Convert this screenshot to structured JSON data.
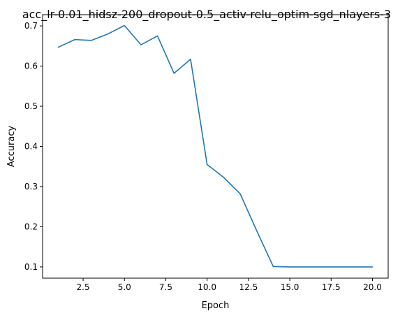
{
  "chart_data": {
    "type": "line",
    "title": "acc_lr-0.01_hidsz-200_dropout-0.5_activ-relu_optim-sgd_nlayers-3",
    "xlabel": "Epoch",
    "ylabel": "Accuracy",
    "xlim": [
      0.05,
      20.95
    ],
    "ylim": [
      0.072,
      0.728
    ],
    "grid": false,
    "x_ticks": [
      2.5,
      5.0,
      7.5,
      10.0,
      12.5,
      15.0,
      17.5,
      20.0
    ],
    "x_tick_labels": [
      "2.5",
      "5.0",
      "7.5",
      "10.0",
      "12.5",
      "15.0",
      "17.5",
      "20.0"
    ],
    "y_ticks": [
      0.1,
      0.2,
      0.3,
      0.4,
      0.5,
      0.6,
      0.7
    ],
    "y_tick_labels": [
      "0.1",
      "0.2",
      "0.3",
      "0.4",
      "0.5",
      "0.6",
      "0.7"
    ],
    "series": [
      {
        "color": "#1f77b4",
        "x": [
          1,
          2,
          3,
          4,
          5,
          6,
          7,
          8,
          9,
          10,
          11,
          12,
          13,
          14,
          15,
          16,
          17,
          18,
          19,
          20
        ],
        "y": [
          0.647,
          0.666,
          0.664,
          0.68,
          0.701,
          0.653,
          0.675,
          0.582,
          0.617,
          0.355,
          0.323,
          0.282,
          0.19,
          0.101,
          0.1,
          0.1,
          0.1,
          0.1,
          0.1,
          0.1
        ]
      }
    ]
  }
}
